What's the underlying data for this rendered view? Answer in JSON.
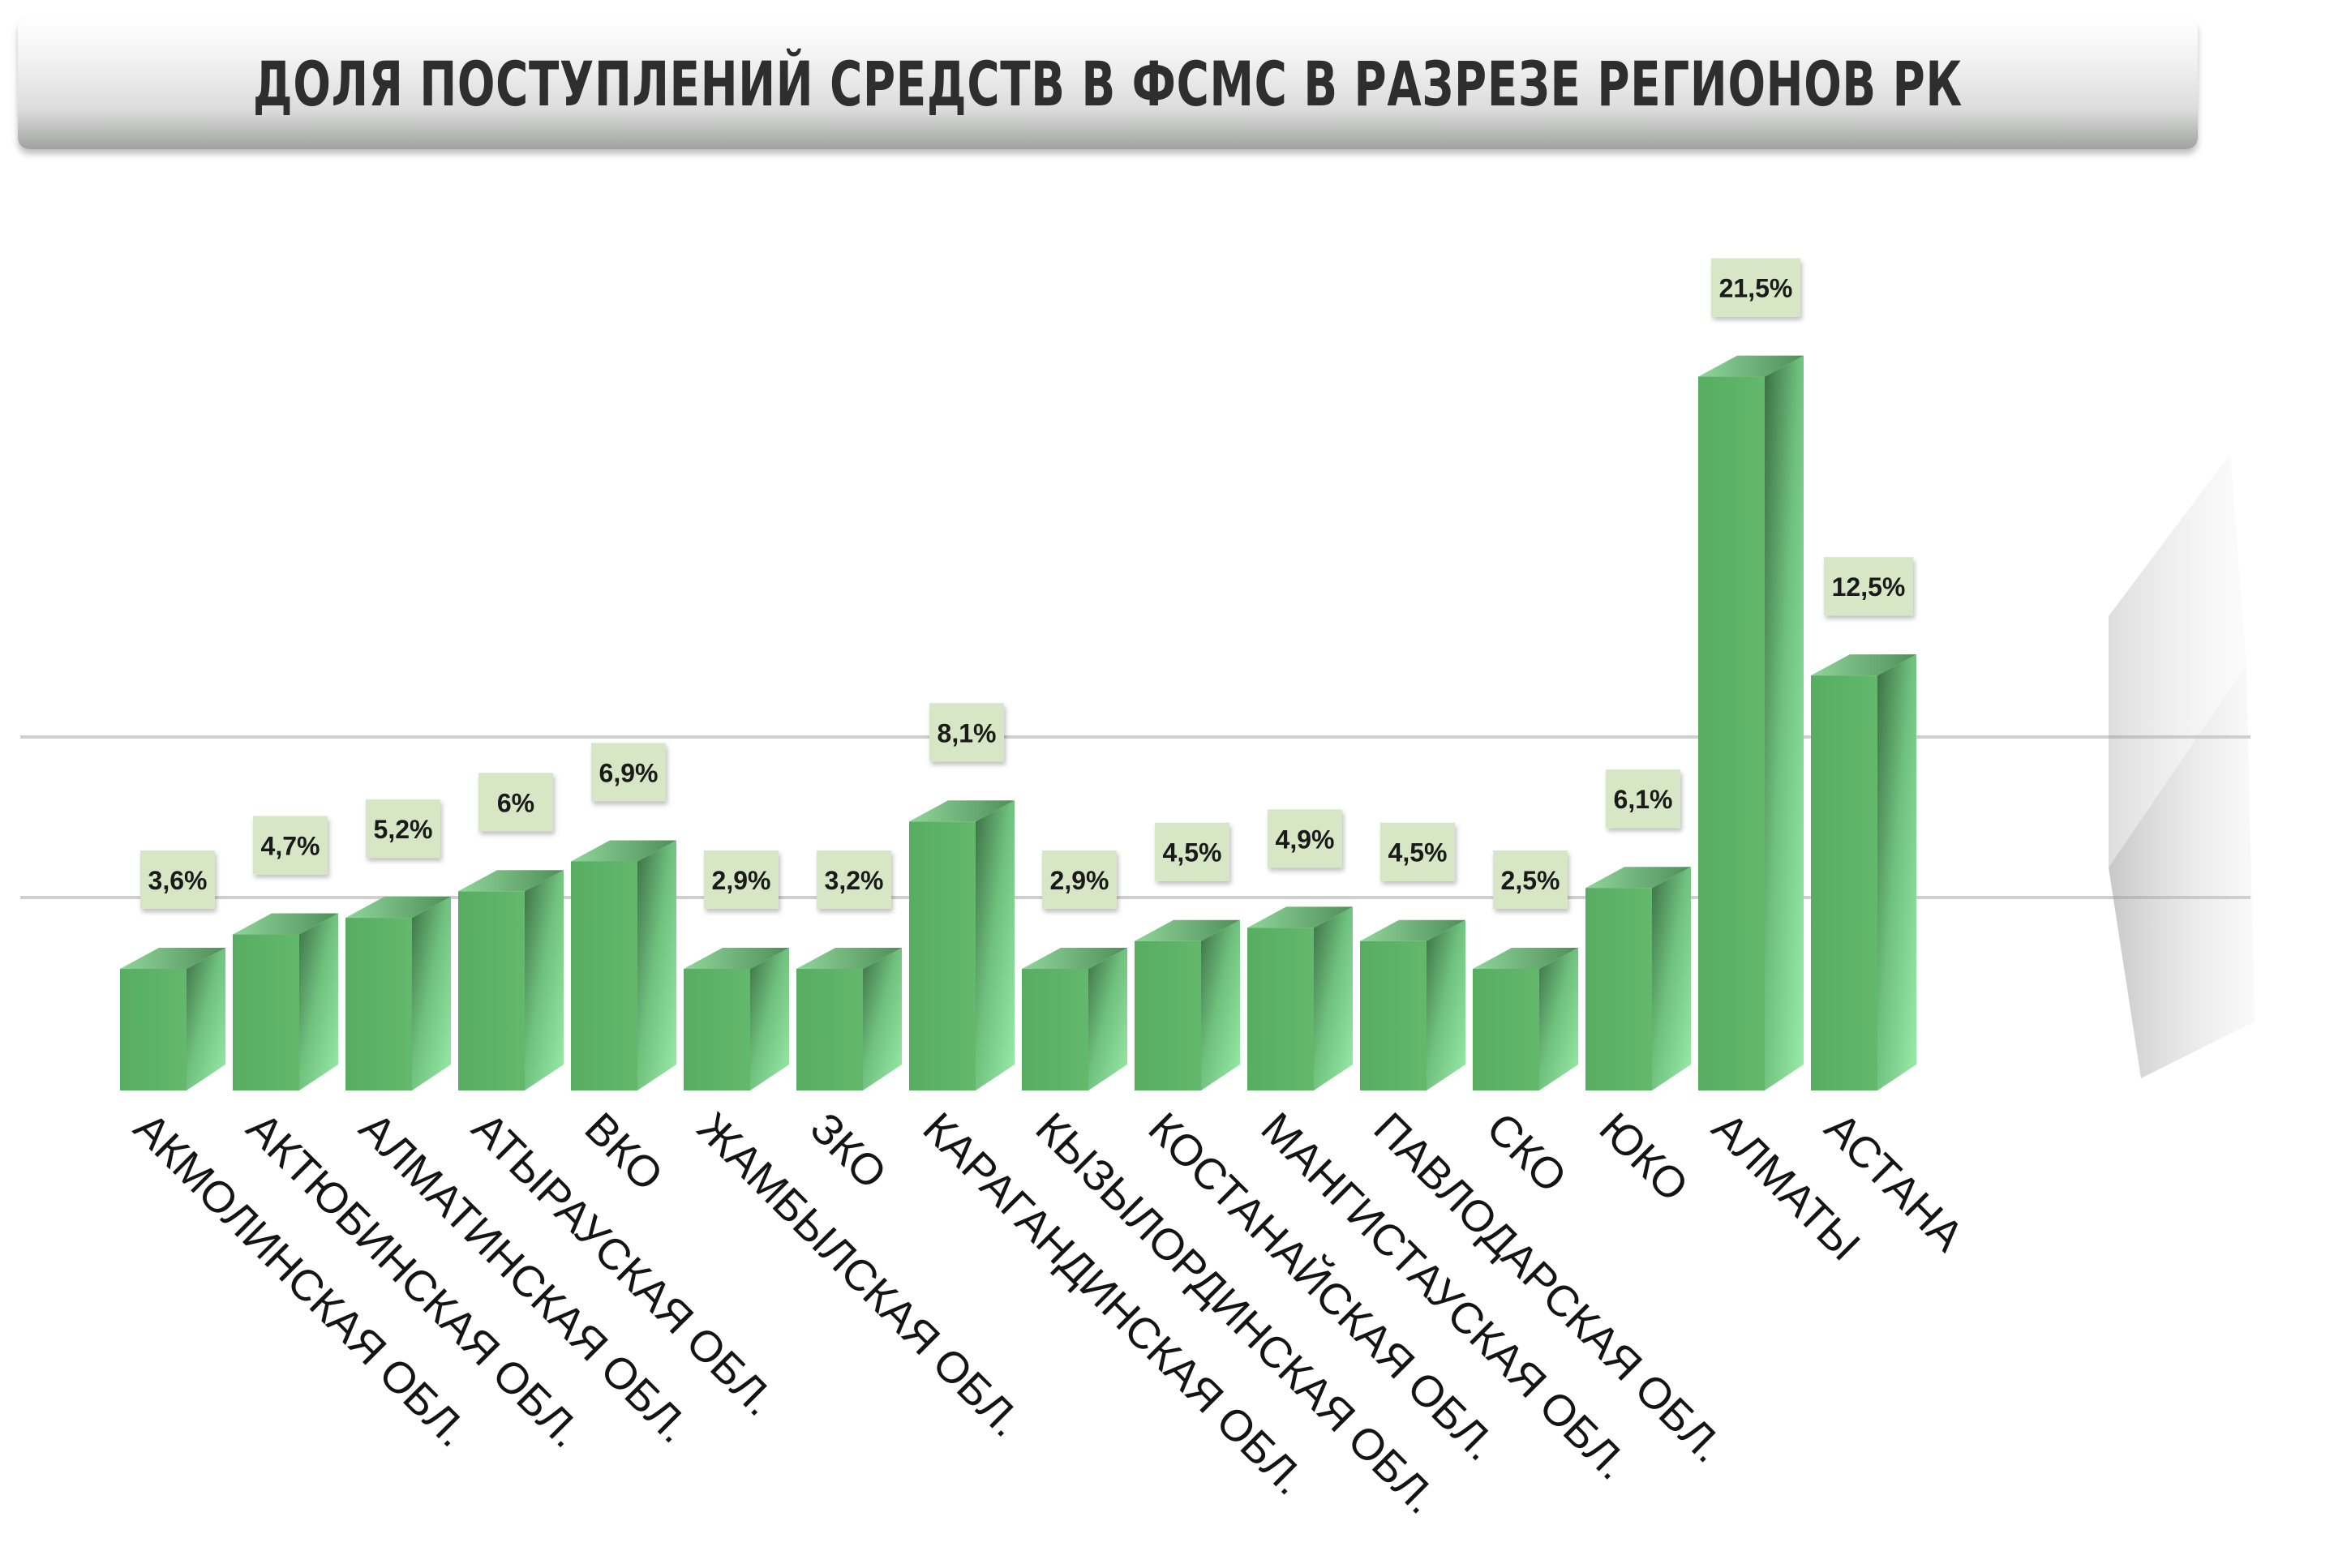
{
  "title": "ДОЛЯ ПОСТУПЛЕНИЙ СРЕДСТВ В ФСМС В РАЗРЕЗЕ РЕГИОНОВ РК",
  "chart_data": {
    "type": "bar",
    "title": "ДОЛЯ ПОСТУПЛЕНИЙ СРЕДСТВ В ФСМС В РАЗРЕЗЕ РЕГИОНОВ РК",
    "xlabel": "",
    "ylabel": "",
    "unit": "%",
    "ylim": [
      0,
      25
    ],
    "grid": true,
    "legend": "none",
    "categories": [
      "АКМОЛИНСКАЯ ОБЛ.",
      "АКТЮБИНСКАЯ ОБЛ.",
      "АЛМАТИНСКАЯ ОБЛ.",
      "АТЫРАУСКАЯ ОБЛ.",
      "ВКО",
      "ЖАМБЫЛСКАЯ ОБЛ.",
      "ЗКО",
      "КАРАГАНДИНСКАЯ ОБЛ.",
      "КЫЗЫЛОРДИНСКАЯ ОБЛ.",
      "КОСТАНАЙСКАЯ ОБЛ.",
      "МАНГИСТАУСКАЯ ОБЛ.",
      "ПАВЛОДАРСКАЯ ОБЛ.",
      "СКО",
      "ЮКО",
      "АЛМАТЫ",
      "АСТАНА"
    ],
    "values": [
      3.6,
      4.7,
      5.2,
      6,
      6.9,
      2.9,
      3.2,
      8.1,
      2.9,
      4.5,
      4.9,
      4.5,
      2.5,
      6.1,
      21.5,
      12.5
    ],
    "value_labels": [
      "3,6%",
      "4,7%",
      "5,2%",
      "6%",
      "6,9%",
      "2,9%",
      "3,2%",
      "8,1%",
      "2,9%",
      "4,5%",
      "4,9%",
      "4,5%",
      "2,5%",
      "6,1%",
      "21,5%",
      "12,5%"
    ],
    "colors": {
      "bar_front": "#5cb266",
      "bar_side_light": "#9aeca9",
      "bar_side_dark": "#3b6f44",
      "label_box": "#d7e6c4",
      "gridline": "#cfcfcf"
    }
  }
}
